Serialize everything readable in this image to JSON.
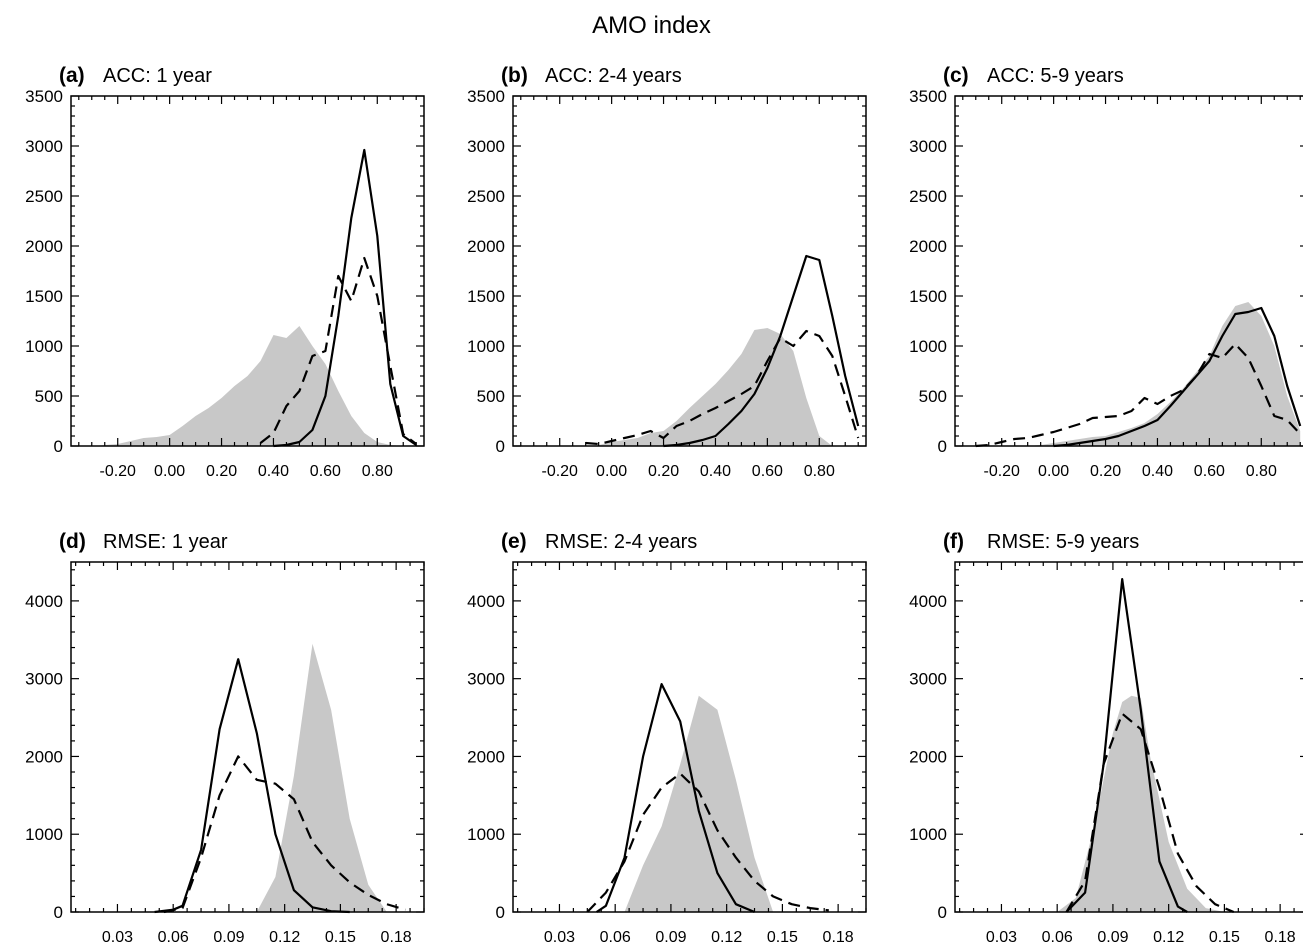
{
  "title": "AMO index",
  "chart_data": [
    {
      "type": "area",
      "panel": "(a)",
      "title": "ACC: 1 year",
      "xticks": [
        "-0.20",
        "0.00",
        "0.20",
        "0.40",
        "0.60",
        "0.80"
      ],
      "xlim": [
        -0.38,
        0.98
      ],
      "ylim": [
        0,
        3500
      ],
      "yticks": [
        0,
        500,
        1000,
        1500,
        2000,
        2500,
        3000,
        3500
      ],
      "series": [
        {
          "style": "shaded",
          "x": [
            -0.3,
            -0.2,
            -0.15,
            -0.1,
            -0.05,
            0.0,
            0.05,
            0.1,
            0.15,
            0.2,
            0.25,
            0.3,
            0.35,
            0.4,
            0.45,
            0.5,
            0.55,
            0.6,
            0.65,
            0.7,
            0.75,
            0.8,
            0.85,
            0.9
          ],
          "y": [
            0,
            20,
            50,
            80,
            90,
            110,
            200,
            300,
            380,
            480,
            600,
            700,
            850,
            1110,
            1080,
            1200,
            1000,
            820,
            550,
            300,
            130,
            40,
            10,
            0
          ]
        },
        {
          "style": "solid",
          "x": [
            0.4,
            0.45,
            0.5,
            0.55,
            0.6,
            0.65,
            0.7,
            0.75,
            0.8,
            0.85,
            0.9,
            0.95
          ],
          "y": [
            0,
            10,
            40,
            160,
            500,
            1300,
            2280,
            2960,
            2100,
            620,
            100,
            10
          ]
        },
        {
          "style": "dashed",
          "x": [
            0.35,
            0.4,
            0.45,
            0.5,
            0.55,
            0.6,
            0.65,
            0.7,
            0.75,
            0.8,
            0.85,
            0.9,
            0.95
          ],
          "y": [
            30,
            130,
            400,
            550,
            900,
            950,
            1700,
            1450,
            1880,
            1500,
            800,
            120,
            20
          ]
        }
      ]
    },
    {
      "type": "area",
      "panel": "(b)",
      "title": "ACC: 2-4 years",
      "xticks": [
        "-0.20",
        "0.00",
        "0.20",
        "0.40",
        "0.60",
        "0.80"
      ],
      "xlim": [
        -0.38,
        0.98
      ],
      "ylim": [
        0,
        3500
      ],
      "yticks": [
        0,
        500,
        1000,
        1500,
        2000,
        2500,
        3000,
        3500
      ],
      "series": [
        {
          "style": "shaded",
          "x": [
            -0.1,
            -0.05,
            0.0,
            0.05,
            0.1,
            0.15,
            0.2,
            0.25,
            0.3,
            0.35,
            0.4,
            0.45,
            0.5,
            0.55,
            0.6,
            0.65,
            0.7,
            0.75,
            0.8,
            0.85
          ],
          "y": [
            0,
            10,
            40,
            60,
            80,
            130,
            150,
            250,
            380,
            500,
            620,
            760,
            920,
            1160,
            1180,
            1120,
            950,
            480,
            100,
            0
          ]
        },
        {
          "style": "solid",
          "x": [
            0.2,
            0.25,
            0.3,
            0.35,
            0.4,
            0.45,
            0.5,
            0.55,
            0.6,
            0.65,
            0.7,
            0.75,
            0.8,
            0.85,
            0.9,
            0.95
          ],
          "y": [
            0,
            10,
            30,
            60,
            100,
            220,
            350,
            520,
            780,
            1100,
            1500,
            1900,
            1860,
            1300,
            700,
            200
          ]
        },
        {
          "style": "dashed",
          "x": [
            -0.1,
            -0.05,
            0.0,
            0.05,
            0.1,
            0.15,
            0.2,
            0.25,
            0.3,
            0.35,
            0.4,
            0.45,
            0.5,
            0.55,
            0.6,
            0.65,
            0.7,
            0.75,
            0.8,
            0.85,
            0.9,
            0.95
          ],
          "y": [
            30,
            20,
            50,
            80,
            110,
            150,
            80,
            200,
            250,
            320,
            380,
            450,
            520,
            600,
            850,
            1080,
            1000,
            1150,
            1100,
            900,
            500,
            80
          ]
        }
      ]
    },
    {
      "type": "area",
      "panel": "(c)",
      "title": "ACC: 5-9 years",
      "xticks": [
        "-0.20",
        "0.00",
        "0.20",
        "0.40",
        "0.60",
        "0.80"
      ],
      "xlim": [
        -0.38,
        0.98
      ],
      "ylim": [
        0,
        3500
      ],
      "yticks": [
        0,
        500,
        1000,
        1500,
        2000,
        2500,
        3000,
        3500
      ],
      "series": [
        {
          "style": "shaded",
          "x": [
            -0.1,
            -0.05,
            0.0,
            0.05,
            0.1,
            0.15,
            0.2,
            0.25,
            0.3,
            0.35,
            0.4,
            0.45,
            0.5,
            0.55,
            0.6,
            0.65,
            0.7,
            0.75,
            0.8,
            0.85,
            0.9,
            0.95
          ],
          "y": [
            0,
            10,
            30,
            50,
            70,
            90,
            100,
            140,
            180,
            230,
            320,
            440,
            580,
            740,
            900,
            1200,
            1400,
            1440,
            1300,
            1000,
            500,
            150
          ]
        },
        {
          "style": "solid",
          "x": [
            0.0,
            0.05,
            0.1,
            0.15,
            0.2,
            0.25,
            0.3,
            0.35,
            0.4,
            0.45,
            0.5,
            0.55,
            0.6,
            0.65,
            0.7,
            0.75,
            0.8,
            0.85,
            0.9,
            0.95
          ],
          "y": [
            0,
            10,
            30,
            50,
            70,
            100,
            150,
            200,
            260,
            400,
            550,
            700,
            850,
            1100,
            1320,
            1340,
            1380,
            1100,
            600,
            200
          ]
        },
        {
          "style": "dashed",
          "x": [
            -0.3,
            -0.25,
            -0.2,
            -0.15,
            -0.1,
            -0.05,
            0.0,
            0.05,
            0.1,
            0.15,
            0.2,
            0.25,
            0.3,
            0.35,
            0.4,
            0.45,
            0.5,
            0.55,
            0.6,
            0.65,
            0.7,
            0.75,
            0.8,
            0.85,
            0.9,
            0.95
          ],
          "y": [
            0,
            10,
            40,
            70,
            80,
            110,
            140,
            180,
            220,
            280,
            290,
            300,
            350,
            480,
            420,
            500,
            560,
            700,
            920,
            880,
            1020,
            880,
            600,
            300,
            260,
            120
          ]
        }
      ]
    },
    {
      "type": "area",
      "panel": "(d)",
      "title": "RMSE: 1 year",
      "xticks": [
        "0.03",
        "0.06",
        "0.09",
        "0.12",
        "0.15",
        "0.18"
      ],
      "xlim": [
        0.005,
        0.195
      ],
      "ylim": [
        0,
        4500
      ],
      "yticks": [
        0,
        1000,
        2000,
        3000,
        4000
      ],
      "series": [
        {
          "style": "shaded",
          "x": [
            0.105,
            0.115,
            0.125,
            0.135,
            0.145,
            0.155,
            0.165,
            0.175
          ],
          "y": [
            0,
            450,
            1750,
            3450,
            2600,
            1200,
            350,
            0
          ]
        },
        {
          "style": "solid",
          "x": [
            0.05,
            0.06,
            0.065,
            0.075,
            0.085,
            0.095,
            0.105,
            0.115,
            0.125,
            0.135,
            0.145,
            0.155
          ],
          "y": [
            0,
            30,
            80,
            800,
            2350,
            3250,
            2300,
            1000,
            280,
            60,
            10,
            0
          ]
        },
        {
          "style": "dashed",
          "x": [
            0.055,
            0.065,
            0.075,
            0.085,
            0.095,
            0.105,
            0.115,
            0.125,
            0.135,
            0.145,
            0.155,
            0.165,
            0.175,
            0.185
          ],
          "y": [
            0,
            50,
            700,
            1500,
            2000,
            1700,
            1650,
            1450,
            900,
            600,
            380,
            220,
            100,
            30
          ]
        }
      ]
    },
    {
      "type": "area",
      "panel": "(e)",
      "title": "RMSE: 2-4 years",
      "xticks": [
        "0.03",
        "0.06",
        "0.09",
        "0.12",
        "0.15",
        "0.18"
      ],
      "xlim": [
        0.005,
        0.195
      ],
      "ylim": [
        0,
        4500
      ],
      "yticks": [
        0,
        1000,
        2000,
        3000,
        4000
      ],
      "series": [
        {
          "style": "shaded",
          "x": [
            0.065,
            0.075,
            0.085,
            0.095,
            0.105,
            0.115,
            0.125,
            0.135,
            0.145
          ],
          "y": [
            0,
            600,
            1100,
            1900,
            2780,
            2600,
            1700,
            700,
            0
          ]
        },
        {
          "style": "solid",
          "x": [
            0.05,
            0.055,
            0.065,
            0.075,
            0.085,
            0.095,
            0.105,
            0.115,
            0.125,
            0.135
          ],
          "y": [
            0,
            80,
            700,
            2000,
            2930,
            2450,
            1300,
            500,
            100,
            0
          ]
        },
        {
          "style": "dashed",
          "x": [
            0.045,
            0.055,
            0.065,
            0.075,
            0.085,
            0.095,
            0.105,
            0.115,
            0.125,
            0.135,
            0.145,
            0.155,
            0.165,
            0.175
          ],
          "y": [
            0,
            250,
            650,
            1250,
            1600,
            1780,
            1550,
            1050,
            700,
            400,
            200,
            100,
            50,
            20
          ]
        }
      ]
    },
    {
      "type": "area",
      "panel": "(f)",
      "title": "RMSE: 5-9 years",
      "xticks": [
        "0.03",
        "0.06",
        "0.09",
        "0.12",
        "0.15",
        "0.18"
      ],
      "xlim": [
        0.005,
        0.195
      ],
      "ylim": [
        0,
        4500
      ],
      "yticks": [
        0,
        1000,
        2000,
        3000,
        4000
      ],
      "series": [
        {
          "style": "shaded",
          "x": [
            0.06,
            0.07,
            0.08,
            0.09,
            0.095,
            0.1,
            0.105,
            0.11,
            0.12,
            0.13,
            0.14,
            0.15
          ],
          "y": [
            0,
            180,
            1100,
            2300,
            2700,
            2780,
            2750,
            2000,
            900,
            300,
            50,
            0
          ]
        },
        {
          "style": "solid",
          "x": [
            0.065,
            0.075,
            0.085,
            0.095,
            0.105,
            0.115,
            0.125,
            0.13
          ],
          "y": [
            0,
            250,
            1900,
            4280,
            2600,
            650,
            70,
            0
          ]
        },
        {
          "style": "dashed",
          "x": [
            0.065,
            0.075,
            0.085,
            0.095,
            0.105,
            0.115,
            0.125,
            0.135,
            0.145,
            0.155
          ],
          "y": [
            0,
            400,
            1900,
            2550,
            2350,
            1600,
            750,
            330,
            100,
            0
          ]
        }
      ]
    }
  ]
}
